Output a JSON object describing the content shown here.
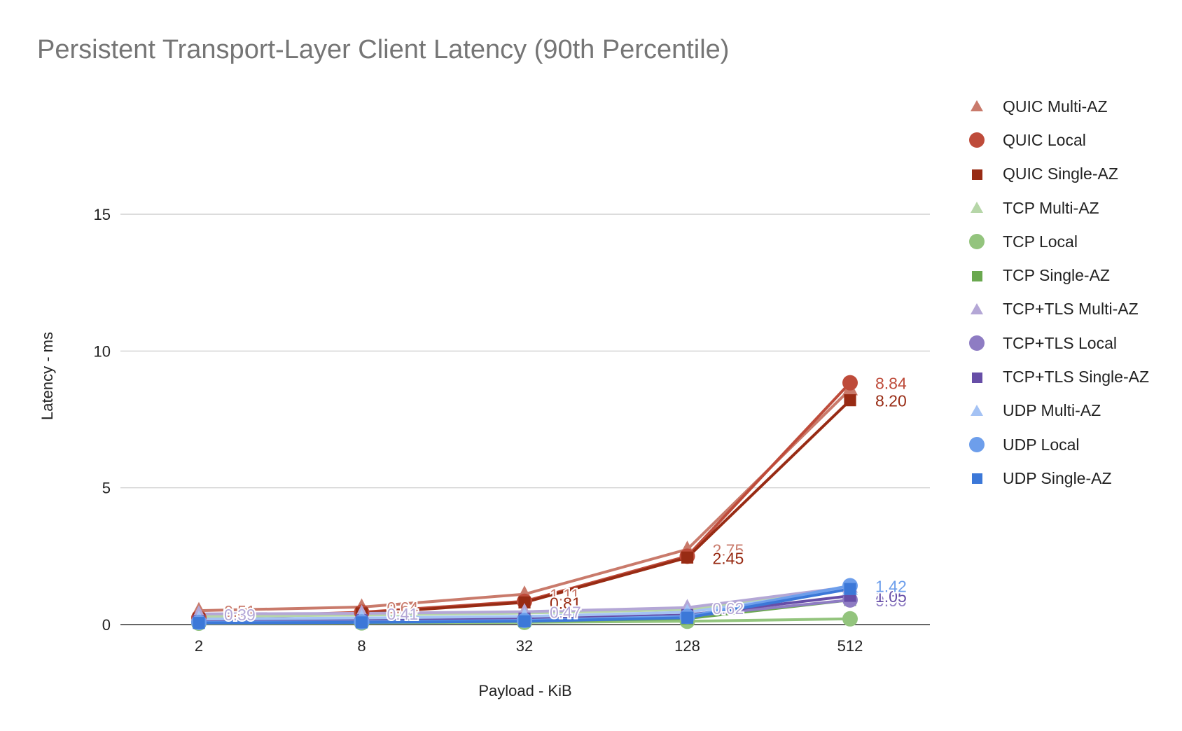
{
  "chart_data": {
    "type": "line",
    "title": "Persistent Transport-Layer Client Latency (90th Percentile)",
    "xlabel": "Payload - KiB",
    "ylabel": "Latency - ms",
    "categories": [
      "2",
      "8",
      "32",
      "128",
      "512"
    ],
    "ylim": [
      0,
      15
    ],
    "yticks": [
      "0",
      "5",
      "10",
      "15"
    ],
    "grid": true,
    "legend_position": "right",
    "series": [
      {
        "name": "QUIC Multi-AZ",
        "color": "#c97a6b",
        "marker": "triangle",
        "values": [
          0.51,
          0.64,
          1.11,
          2.75,
          8.6
        ],
        "labels": [
          "0.51",
          "0.64",
          "1.11",
          "2.75",
          ""
        ]
      },
      {
        "name": "QUIC Local",
        "color": "#be4b3a",
        "marker": "circle",
        "values": [
          0.25,
          0.45,
          0.85,
          2.5,
          8.84
        ],
        "labels": [
          "",
          "",
          "",
          "",
          "8.84"
        ]
      },
      {
        "name": "QUIC Single-AZ",
        "color": "#982b14",
        "marker": "square",
        "values": [
          0.22,
          0.41,
          0.81,
          2.45,
          8.2
        ],
        "labels": [
          "",
          "",
          "0.81",
          "2.45",
          "8.20"
        ]
      },
      {
        "name": "TCP Multi-AZ",
        "color": "#b6d6a8",
        "marker": "triangle",
        "values": [
          0.3,
          0.35,
          0.42,
          0.55,
          1.3
        ],
        "labels": [
          "",
          "",
          "",
          "",
          ""
        ]
      },
      {
        "name": "TCP Local",
        "color": "#93c47d",
        "marker": "circle",
        "values": [
          0.05,
          0.06,
          0.08,
          0.12,
          0.21
        ],
        "labels": [
          "",
          "",
          "",
          "",
          ""
        ]
      },
      {
        "name": "TCP Single-AZ",
        "color": "#6aa84f",
        "marker": "square",
        "values": [
          0.07,
          0.08,
          0.12,
          0.22,
          0.9
        ],
        "labels": [
          "",
          "",
          "",
          "",
          ""
        ]
      },
      {
        "name": "TCP+TLS Multi-AZ",
        "color": "#b4a7d6",
        "marker": "triangle",
        "values": [
          0.39,
          0.41,
          0.47,
          0.62,
          1.38
        ],
        "labels": [
          "0.39",
          "0.41",
          "0.47",
          "0.62",
          ""
        ]
      },
      {
        "name": "TCP+TLS Local",
        "color": "#8e7cc3",
        "marker": "circle",
        "values": [
          0.1,
          0.13,
          0.18,
          0.3,
          0.9
        ],
        "labels": [
          "",
          "",
          "",
          "",
          "0.90"
        ]
      },
      {
        "name": "TCP+TLS Single-AZ",
        "color": "#674ea7",
        "marker": "square",
        "values": [
          0.12,
          0.16,
          0.22,
          0.35,
          1.05
        ],
        "labels": [
          "",
          "",
          "",
          "",
          "1.05"
        ]
      },
      {
        "name": "UDP Multi-AZ",
        "color": "#a4c2f4",
        "marker": "triangle",
        "values": [
          0.2,
          0.24,
          0.3,
          0.45,
          1.3
        ],
        "labels": [
          "",
          "",
          "",
          "",
          ""
        ]
      },
      {
        "name": "UDP Local",
        "color": "#6d9eeb",
        "marker": "circle",
        "values": [
          0.08,
          0.1,
          0.15,
          0.3,
          1.42
        ],
        "labels": [
          "",
          "",
          "",
          "",
          "1.42"
        ]
      },
      {
        "name": "UDP Single-AZ",
        "color": "#3c78d8",
        "marker": "square",
        "values": [
          0.06,
          0.08,
          0.12,
          0.25,
          1.3
        ],
        "labels": [
          "",
          "",
          "",
          "",
          ""
        ]
      }
    ]
  }
}
